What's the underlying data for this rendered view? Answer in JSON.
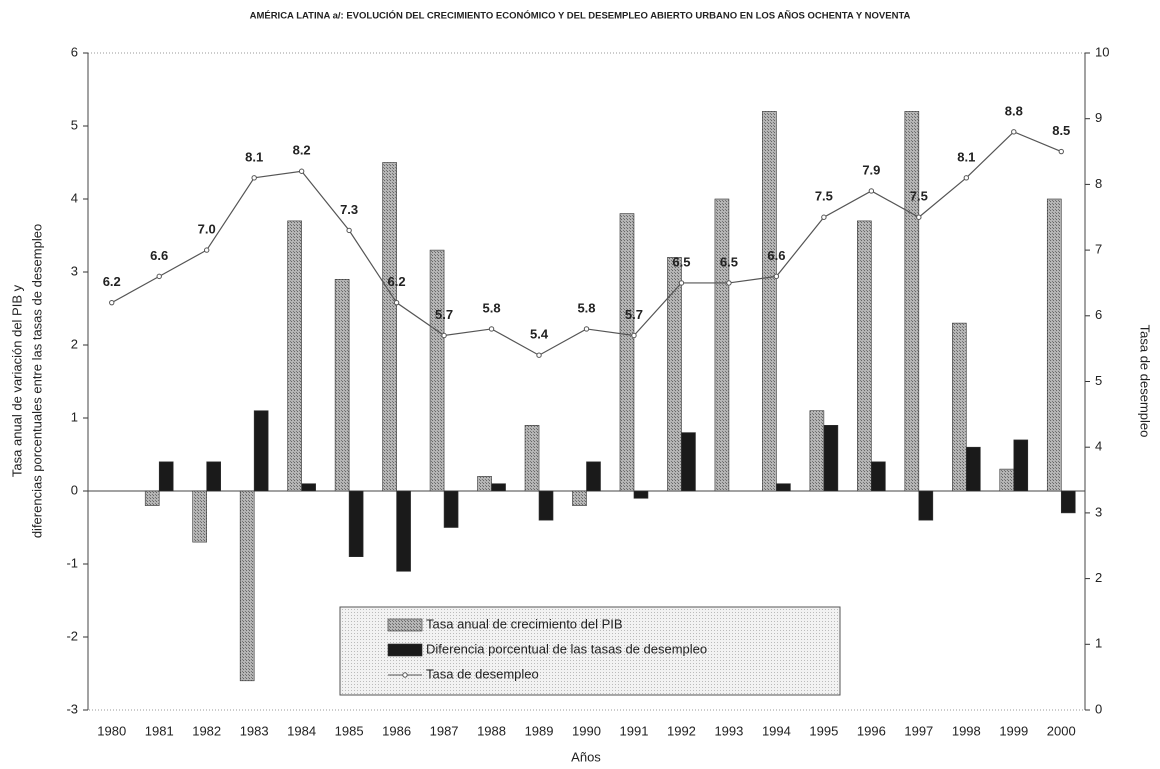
{
  "chart_data": {
    "type": "bar_line",
    "title": "AMÉRICA LATINA a/: EVOLUCIÓN DEL CRECIMIENTO ECONÓMICO Y DEL DESEMPLEO ABIERTO URBANO EN LOS AÑOS OCHENTA Y NOVENTA",
    "y_label": [
      "Tasa anual de variación del PIB y",
      "diferencias porcentuales entre las tasas de desempleo"
    ],
    "y2_label": "Tasa de desempleo",
    "x_label": "Años",
    "categories": [
      "1980",
      "1981",
      "1982",
      "1983",
      "1984",
      "1985",
      "1986",
      "1987",
      "1988",
      "1989",
      "1990",
      "1991",
      "1992",
      "1993",
      "1994",
      "1995",
      "1996",
      "1997",
      "1998",
      "1999",
      "2000"
    ],
    "series": [
      {
        "name": "Tasa anual de crecimiento del PIB",
        "type": "bar",
        "color": "#9a9a9a",
        "values": [
          null,
          -0.2,
          -0.7,
          -2.6,
          3.7,
          2.9,
          4.5,
          3.3,
          0.2,
          0.9,
          -0.2,
          3.8,
          3.2,
          4.0,
          5.2,
          1.1,
          3.7,
          5.2,
          2.3,
          0.3,
          4.0
        ]
      },
      {
        "name": "Diferencia porcentual de las tasas de desempleo",
        "type": "bar",
        "color": "#1a1a1a",
        "values": [
          null,
          0.4,
          0.4,
          1.1,
          0.1,
          -0.9,
          -1.1,
          -0.5,
          0.1,
          -0.4,
          0.4,
          -0.1,
          0.8,
          0,
          0.1,
          0.9,
          0.4,
          -0.4,
          0.6,
          0.7,
          -0.3
        ]
      },
      {
        "name": "Tasa de desempleo",
        "type": "line",
        "axis": "y2",
        "color": "#555555",
        "values": [
          6.2,
          6.6,
          7.0,
          8.1,
          8.2,
          7.3,
          6.2,
          5.7,
          5.8,
          5.4,
          5.8,
          5.7,
          6.5,
          6.5,
          6.6,
          7.5,
          7.9,
          7.5,
          8.1,
          8.8,
          8.5
        ],
        "value_labels": [
          "6.2",
          "6.6",
          "7.0",
          "8.1",
          "8.2",
          "7.3",
          "6.2",
          "5.7",
          "5.8",
          "5.4",
          "5.8",
          "5.7",
          "6.5",
          "6.5",
          "6.6",
          "7.5",
          "7.9",
          "7.5",
          "8.1",
          "8.8",
          "8.5"
        ]
      }
    ],
    "ylim": [
      -3,
      6
    ],
    "yticks": [
      -3,
      -2,
      -1,
      0,
      1,
      2,
      3,
      4,
      5,
      6
    ],
    "y2lim": [
      0,
      10
    ],
    "y2ticks": [
      0,
      1,
      2,
      3,
      4,
      5,
      6,
      7,
      8,
      9,
      10
    ],
    "grid": false,
    "legend": "bottom-center"
  }
}
